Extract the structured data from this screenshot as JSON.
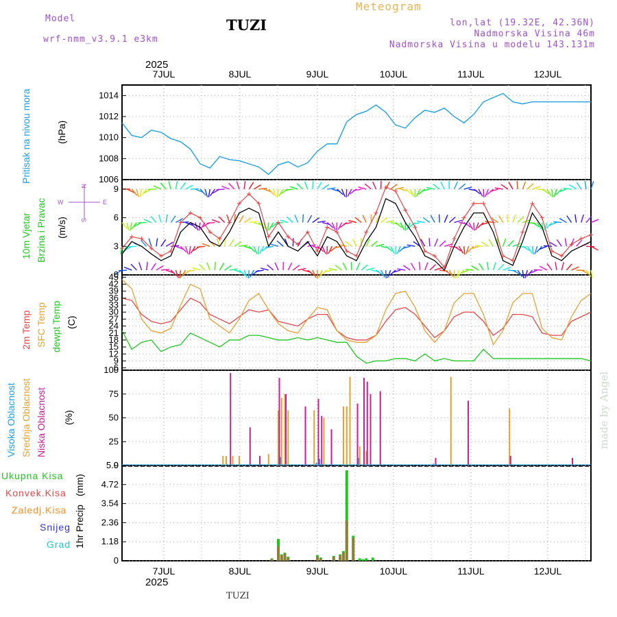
{
  "header": {
    "model_label": "Model",
    "model_name": "wrf-nmm_v3.9.1 e3km",
    "station": "TUZI",
    "title": "Meteogram",
    "coords": "lon,lat (19.32E, 42.36N)",
    "altitude": "Nadmorska Visina 46m",
    "model_altitude": "Nadmorska Visina u modelu 143.131m",
    "year": "2025",
    "footer_station": "TUZI",
    "watermark": "made by Angel"
  },
  "colors": {
    "pressure": "#1ea0e6",
    "wind_speed": "#000000",
    "gust": "#e64646",
    "temp2m": "#e64646",
    "sfc_temp": "#e6a032",
    "dewpoint": "#1ec81e",
    "high_cloud": "#1ea0e6",
    "mid_cloud": "#e6a032",
    "low_cloud": "#c81e96",
    "total_precip": "#1ec81e",
    "conv_precip": "#e64646",
    "frozen": "#ff8c1e",
    "snow": "#3232dc",
    "hail": "#1ec8c8",
    "purple_text": "#a050d0"
  },
  "time_axis": {
    "day_labels": [
      "7JUL",
      "8JUL",
      "9JUL",
      "10JUL",
      "11JUL",
      "12JUL"
    ],
    "start_hour": 0,
    "end_hour": 144
  },
  "panels": {
    "pressure": {
      "ylabel": "Pritisak na nivou mora",
      "unit": "(hPa)"
    },
    "wind": {
      "ylabel_1": "10m Vjetar",
      "ylabel_2": "Brzina i Pravac",
      "unit": "(m/s)",
      "compass_n": "N",
      "compass_s": "S",
      "compass_w": "W",
      "compass_e": "E"
    },
    "temp": {
      "label_2m": "2m Temp",
      "label_sfc": "SFC Temp",
      "label_dew": "dewpt Temp",
      "unit": "(C)"
    },
    "cloud": {
      "label_high": "Visoka Oblacnost",
      "label_mid": "Srednja Oblacnost",
      "label_low": "Niska Oblacnost",
      "unit": "(%)"
    },
    "precip": {
      "ylabel": "1hr Precip",
      "unit": "(mm)",
      "legend": [
        "Ukupna Kisa",
        "Konvek.Kisa",
        "Zaledj.Kisa",
        "Snijeg",
        "Grad"
      ]
    }
  },
  "chart_data": [
    {
      "type": "line",
      "title": "Pritisak na nivou mora",
      "ylabel": "hPa",
      "ylim": [
        1006,
        1015
      ],
      "yticks": [
        1006,
        1008,
        1010,
        1012,
        1014
      ],
      "x": [
        0,
        3,
        6,
        9,
        12,
        15,
        18,
        21,
        24,
        27,
        30,
        33,
        36,
        39,
        42,
        45,
        48,
        51,
        54,
        57,
        60,
        63,
        66,
        69,
        72,
        75,
        78,
        81,
        84,
        87,
        90,
        93,
        96,
        99,
        102,
        105,
        108,
        111,
        114,
        117,
        120,
        123,
        126,
        129,
        132,
        135,
        138,
        141,
        144
      ],
      "series": [
        {
          "name": "Pressure",
          "values": [
            1011.4,
            1010.2,
            1010.0,
            1010.7,
            1010.5,
            1009.9,
            1009.6,
            1008.9,
            1007.5,
            1007.1,
            1008.2,
            1007.9,
            1007.8,
            1007.5,
            1007.2,
            1006.5,
            1007.4,
            1007.7,
            1007.2,
            1007.6,
            1008.7,
            1009.4,
            1009.4,
            1011.5,
            1012.2,
            1012.5,
            1013.1,
            1012.4,
            1011.2,
            1010.9,
            1011.9,
            1012.6,
            1012.4,
            1012.8,
            1012.0,
            1011.4,
            1012.2,
            1013.4,
            1013.8,
            1014.2,
            1013.4,
            1013.2,
            1013.4,
            1013.4,
            1013.4,
            1013.4,
            1013.4,
            1013.4,
            1013.4
          ]
        }
      ]
    },
    {
      "type": "line",
      "title": "10m Vjetar Brzina i Pravac",
      "ylabel": "m/s",
      "ylim": [
        0,
        10
      ],
      "yticks": [
        0,
        3,
        6,
        9
      ],
      "x": [
        0,
        3,
        6,
        9,
        12,
        15,
        18,
        21,
        24,
        27,
        30,
        33,
        36,
        39,
        42,
        45,
        48,
        51,
        54,
        57,
        60,
        63,
        66,
        69,
        72,
        75,
        78,
        81,
        84,
        87,
        90,
        93,
        96,
        99,
        102,
        105,
        108,
        111,
        114,
        117,
        120,
        123,
        126,
        129,
        132,
        135,
        138,
        141,
        144
      ],
      "series": [
        {
          "name": "Wind speed",
          "values": [
            2.2,
            3.5,
            3.0,
            2.2,
            1.5,
            2.0,
            4.5,
            5.5,
            5.0,
            3.5,
            3.0,
            4.5,
            6.5,
            7.0,
            6.5,
            3.0,
            4.5,
            3.0,
            2.5,
            3.5,
            2.0,
            4.0,
            3.5,
            2.0,
            1.5,
            3.5,
            5.0,
            8.0,
            7.5,
            5.5,
            4.0,
            2.0,
            1.5,
            0.5,
            3.0,
            5.0,
            6.5,
            6.5,
            4.5,
            1.5,
            1.0,
            3.5,
            6.5,
            5.0,
            2.0,
            1.5,
            2.5,
            3.0,
            3.5
          ]
        },
        {
          "name": "Gusts",
          "values": [
            2.8,
            4.0,
            3.8,
            2.8,
            2.0,
            2.5,
            5.5,
            6.5,
            6.0,
            4.5,
            3.8,
            5.5,
            7.5,
            8.5,
            7.5,
            4.0,
            5.5,
            4.0,
            3.2,
            4.5,
            2.5,
            5.0,
            4.5,
            2.5,
            2.0,
            4.5,
            6.5,
            9.2,
            8.8,
            6.8,
            5.0,
            2.5,
            2.0,
            0.8,
            3.8,
            6.0,
            7.5,
            7.5,
            5.5,
            2.0,
            1.5,
            4.5,
            7.5,
            6.0,
            2.5,
            2.0,
            3.2,
            3.8,
            4.2
          ]
        }
      ]
    },
    {
      "type": "line",
      "title": "Temperature",
      "ylabel": "C",
      "ylim": [
        5,
        46
      ],
      "yticks": [
        6,
        9,
        12,
        15,
        18,
        21,
        24,
        27,
        30,
        33,
        36,
        39,
        42,
        45
      ],
      "x": [
        0,
        3,
        6,
        9,
        12,
        15,
        18,
        21,
        24,
        27,
        30,
        33,
        36,
        39,
        42,
        45,
        48,
        51,
        54,
        57,
        60,
        63,
        66,
        69,
        72,
        75,
        78,
        81,
        84,
        87,
        90,
        93,
        96,
        99,
        102,
        105,
        108,
        111,
        114,
        117,
        120,
        123,
        126,
        129,
        132,
        135,
        138,
        141,
        144
      ],
      "series": [
        {
          "name": "2m Temp",
          "values": [
            36,
            35,
            29,
            26,
            25,
            26,
            31,
            36,
            34,
            29,
            27,
            25,
            28,
            31,
            30,
            31,
            26,
            25,
            24,
            27,
            29,
            29,
            22,
            19,
            18,
            18,
            20,
            26,
            31,
            32,
            29,
            24,
            19,
            22,
            28,
            30,
            30,
            26,
            20,
            23,
            29,
            29,
            28,
            21,
            20,
            20,
            26,
            28,
            30
          ]
        },
        {
          "name": "SFC Temp",
          "values": [
            44,
            40,
            27,
            22,
            21,
            23,
            33,
            42,
            40,
            27,
            24,
            21,
            27,
            35,
            38,
            31,
            25,
            22,
            21,
            27,
            32,
            31,
            22,
            18,
            17,
            17,
            20,
            31,
            38,
            39,
            32,
            22,
            17,
            22,
            34,
            38,
            38,
            29,
            16,
            22,
            34,
            38,
            38,
            23,
            19,
            18,
            28,
            35,
            38
          ]
        },
        {
          "name": "dewpt Temp",
          "values": [
            22,
            14,
            17,
            18,
            13,
            15,
            16,
            21,
            19,
            17,
            15,
            18,
            18,
            20,
            20,
            19,
            18,
            18,
            19,
            18,
            19,
            18,
            17,
            17,
            11,
            8,
            9,
            9,
            10,
            10,
            9,
            12,
            9,
            10,
            9,
            9,
            9,
            14,
            10,
            10,
            10,
            10,
            10,
            10,
            10,
            10,
            10,
            10,
            9
          ]
        }
      ]
    },
    {
      "type": "bar",
      "title": "Oblacnost",
      "ylabel": "%",
      "ylim": [
        0,
        100
      ],
      "yticks": [
        0,
        25,
        50,
        75,
        100
      ],
      "series": [
        {
          "name": "Visoka Oblacnost",
          "x": [
            49,
            60,
            61,
            73,
            96,
            123
          ],
          "values": [
            9,
            3,
            7,
            8,
            2,
            1
          ]
        },
        {
          "name": "Srednja Oblacnost",
          "x": [
            31,
            32,
            34,
            36,
            45,
            48,
            49,
            50,
            51,
            59,
            62,
            68,
            69,
            70,
            73,
            75,
            101,
            119
          ],
          "values": [
            10,
            10,
            10,
            10,
            12,
            58,
            71,
            75,
            58,
            58,
            50,
            62,
            62,
            93,
            20,
            15,
            93,
            60
          ]
        },
        {
          "name": "Niska Oblacnost",
          "x": [
            33,
            39,
            42,
            48,
            50,
            56,
            60,
            61,
            64,
            72,
            74,
            75,
            76,
            79,
            96,
            106,
            119,
            138
          ],
          "values": [
            97,
            40,
            10,
            92,
            75,
            62,
            70,
            52,
            38,
            65,
            92,
            88,
            75,
            78,
            8,
            68,
            10,
            8
          ]
        }
      ]
    },
    {
      "type": "bar",
      "title": "1hr Precip",
      "ylabel": "mm",
      "ylim": [
        0,
        5.9
      ],
      "yticks": [
        0,
        1.18,
        2.36,
        3.54,
        4.72,
        5.9
      ],
      "series": [
        {
          "name": "Ukupna Kisa",
          "x": [
            46,
            48,
            49,
            50,
            51,
            60,
            61,
            65,
            67,
            68,
            69,
            71,
            73,
            74,
            75,
            77
          ],
          "values": [
            0.15,
            1.35,
            0.4,
            0.5,
            0.25,
            0.35,
            0.2,
            0.3,
            0.4,
            0.6,
            5.6,
            1.55,
            0.15,
            0.1,
            0.15,
            0.2
          ]
        },
        {
          "name": "Konvek.Kisa",
          "x": [
            46,
            48,
            49,
            50,
            51,
            60,
            61,
            65,
            67,
            68,
            69,
            71
          ],
          "values": [
            0.1,
            0.9,
            0.35,
            0.45,
            0.2,
            0.25,
            0.15,
            0.25,
            0.35,
            0.5,
            2.5,
            1.4
          ]
        }
      ]
    }
  ]
}
